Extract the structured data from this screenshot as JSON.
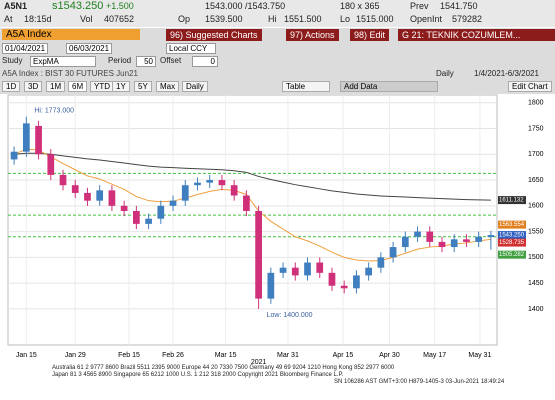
{
  "quote": {
    "ticker": "A5N1",
    "last": "s1543.250",
    "change": "+1.500",
    "bid_ask": "1543.000 /1543.750",
    "size": "180 x 365",
    "prev_label": "Prev",
    "prev": "1541.750",
    "time_label": "At",
    "time": "18:15d",
    "vol_label": "Vol",
    "vol": "407652",
    "op_label": "Op",
    "op": "1539.500",
    "hi_label": "Hi",
    "hi": "1551.500",
    "lo_label": "Lo",
    "lo": "1515.000",
    "oi_label": "OpenInt",
    "oi": "579282"
  },
  "toolbar": {
    "security": "A5A Index",
    "buttons": [
      "96) Suggested Charts",
      "97) Actions",
      "98) Edit",
      "G 21: TEKNIK COZUMLEM..."
    ]
  },
  "range": {
    "start": "01/04/2021",
    "end": "06/03/2021",
    "currency": "Local CCY"
  },
  "study": {
    "label": "Study",
    "name": "ExpMA",
    "period_label": "Period",
    "period": "50",
    "offset_label": "Offset",
    "offset": "0"
  },
  "chart_header": {
    "title": "A5A Index : BIST 30 FUTURES   Jun21",
    "frequency": "Daily",
    "range": "1/4/2021-6/3/2021"
  },
  "periods": [
    "1D",
    "3D",
    "1M",
    "6M",
    "YTD",
    "1Y",
    "5Y",
    "Max"
  ],
  "period_select": "Daily",
  "table": "Table",
  "add_data": "Add Data",
  "edit_chart": "Edit Chart",
  "chart": {
    "type": "candlestick",
    "up_color": "#3f7fbf",
    "down_color": "#d0307a",
    "open": [
      1690,
      1705,
      1755,
      1700,
      1660,
      1640,
      1625,
      1610,
      1630,
      1600,
      1590,
      1565,
      1575,
      1600,
      1610,
      1640,
      1645,
      1650,
      1640,
      1620,
      1590,
      1420,
      1470,
      1480,
      1465,
      1490,
      1470,
      1445,
      1440,
      1465,
      1480,
      1500,
      1520,
      1540,
      1550,
      1530,
      1520,
      1535,
      1530,
      1539.5
    ],
    "high": [
      1715,
      1773,
      1765,
      1710,
      1670,
      1650,
      1635,
      1640,
      1640,
      1610,
      1600,
      1585,
      1610,
      1620,
      1650,
      1655,
      1660,
      1660,
      1650,
      1630,
      1600,
      1480,
      1490,
      1490,
      1500,
      1500,
      1480,
      1455,
      1475,
      1490,
      1510,
      1530,
      1550,
      1560,
      1560,
      1540,
      1545,
      1545,
      1550,
      1551.5
    ],
    "low": [
      1680,
      1695,
      1690,
      1650,
      1630,
      1615,
      1600,
      1600,
      1590,
      1580,
      1555,
      1555,
      1565,
      1590,
      1600,
      1630,
      1635,
      1630,
      1610,
      1580,
      1400,
      1410,
      1460,
      1455,
      1455,
      1460,
      1435,
      1430,
      1430,
      1455,
      1470,
      1490,
      1510,
      1530,
      1520,
      1510,
      1510,
      1520,
      1520,
      1515
    ],
    "close": [
      1705,
      1760,
      1700,
      1660,
      1640,
      1625,
      1610,
      1630,
      1600,
      1590,
      1565,
      1575,
      1600,
      1610,
      1640,
      1645,
      1650,
      1640,
      1620,
      1590,
      1420,
      1470,
      1480,
      1465,
      1490,
      1470,
      1445,
      1440,
      1465,
      1480,
      1500,
      1520,
      1540,
      1550,
      1530,
      1520,
      1535,
      1530,
      1540,
      1543.25
    ],
    "series": [
      {
        "color": "#444444",
        "values": [
          1700,
          1702,
          1702,
          1700,
          1697,
          1694,
          1691,
          1689,
          1686,
          1683,
          1680,
          1677,
          1675,
          1674,
          1673,
          1672,
          1671,
          1670,
          1668,
          1665,
          1657,
          1651,
          1646,
          1641,
          1637,
          1633,
          1629,
          1626,
          1623,
          1621,
          1619,
          1618,
          1617,
          1616,
          1615,
          1614,
          1613,
          1612,
          1611.5,
          1611.132
        ]
      },
      {
        "color": "#f0a040",
        "values": [
          1700,
          1710,
          1708,
          1695,
          1682,
          1670,
          1658,
          1652,
          1642,
          1632,
          1618,
          1610,
          1608,
          1609,
          1615,
          1622,
          1628,
          1632,
          1630,
          1622,
          1590,
          1570,
          1555,
          1540,
          1532,
          1522,
          1510,
          1500,
          1495,
          1493,
          1494,
          1500,
          1508,
          1516,
          1520,
          1522,
          1526,
          1528,
          1532,
          1535
        ]
      }
    ],
    "levels": [
      1663,
      1582,
      1540
    ],
    "level_color": "#40c040",
    "ylim": [
      1330,
      1815
    ],
    "yticks": [
      1400,
      1450,
      1500,
      1550,
      1600,
      1650,
      1700,
      1750,
      1800
    ],
    "xlim": [
      -0.5,
      39.5
    ],
    "xticks": [
      {
        "value": 1,
        "label": "Jan 15"
      },
      {
        "value": 5,
        "label": "Jan 29"
      },
      {
        "value": 9.4,
        "label": "Feb 15"
      },
      {
        "value": 13,
        "label": "Feb 26"
      },
      {
        "value": 17.3,
        "label": "Mar 15"
      },
      {
        "value": 22.4,
        "label": "Mar 31"
      },
      {
        "value": 26.9,
        "label": "Apr 15"
      },
      {
        "value": 30.7,
        "label": "Apr 30"
      },
      {
        "value": 34.4,
        "label": "May 17"
      },
      {
        "value": 38.1,
        "label": "May 31"
      }
    ],
    "year_label": "2021",
    "annotations": [
      {
        "label": "Hi: 1773.000",
        "x": 1,
        "y": 1773
      },
      {
        "label": "Low: 1400.000",
        "x": 20,
        "y": 1400
      }
    ],
    "price_tags": [
      {
        "value": 1611.132,
        "label": "1611.132",
        "color": "#333333"
      },
      {
        "value": 1563.554,
        "label": "1563.554",
        "color": "#e08020"
      },
      {
        "value": 1543.25,
        "label": "1543.250",
        "color": "#3060c0"
      },
      {
        "value": 1528.735,
        "label": "1528.735",
        "color": "#d03030"
      },
      {
        "value": 1505.282,
        "label": "1505.282",
        "color": "#40a040"
      }
    ]
  },
  "footer": [
    "Australia 61 2 9777 8600 Brazil 5511 2395 9000 Europe 44 20 7330 7500 Germany 49 69 9204 1210 Hong Kong 852 2977 6000",
    "Japan 81 3 4565 8900      Singapore 65 6212 1000      U.S. 1 212 318 2000      Copyright 2021 Bloomberg Finance L.P.",
    "SN 106286 AST  GMT+3:00 H879-1405-3 03-Jun-2021 18:49:24"
  ]
}
